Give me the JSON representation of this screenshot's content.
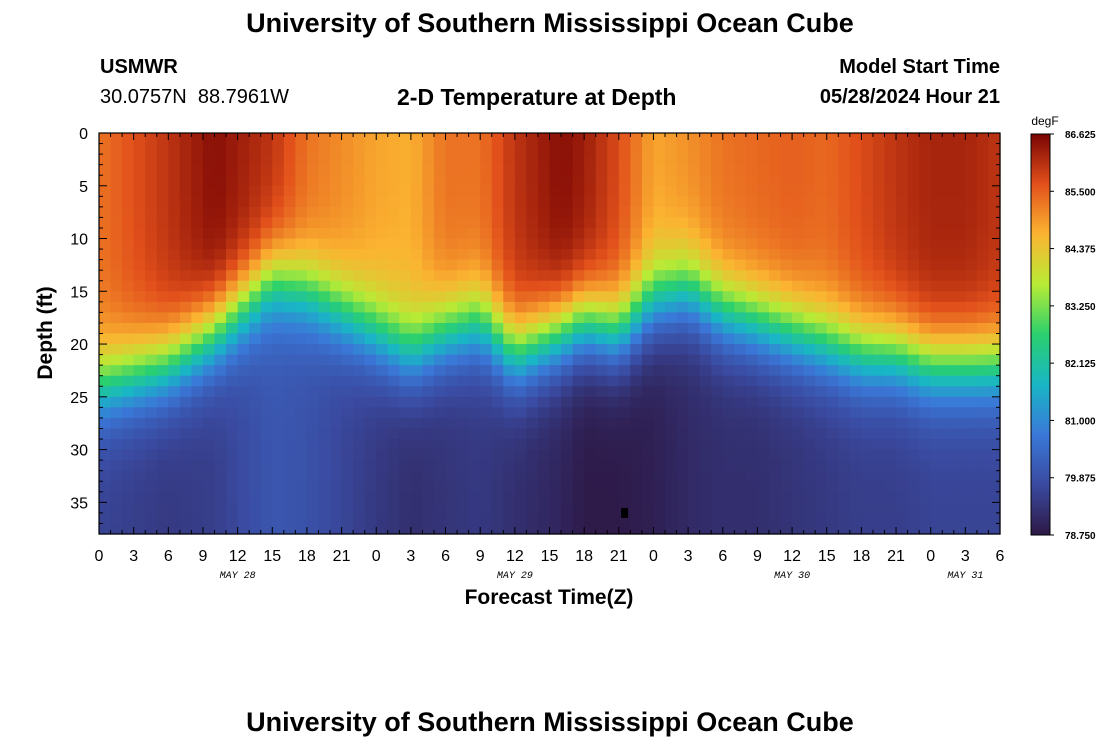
{
  "header": {
    "title": "University of Southern Mississippi Ocean Cube",
    "station": "USMWR",
    "coords": "30.0757N  88.7961W",
    "subtitle": "2-D Temperature at Depth",
    "model_start_label": "Model Start Time",
    "model_start_value": "05/28/2024 Hour 21"
  },
  "footer": {
    "title": "University of Southern Mississippi Ocean Cube"
  },
  "chart_data": {
    "type": "heatmap",
    "title": "2-D Temperature at Depth",
    "xlabel": "Forecast Time(Z)",
    "ylabel": "Depth (ft)",
    "x_unit": "hours since 2024-05-28 00Z",
    "xlim": [
      0,
      78
    ],
    "ylim": [
      0,
      38
    ],
    "y_inverted": true,
    "x_ticks": [
      0,
      3,
      6,
      9,
      12,
      15,
      18,
      21,
      24,
      27,
      30,
      33,
      36,
      39,
      42,
      45,
      48,
      51,
      54,
      57,
      60,
      63,
      66,
      69,
      72,
      75,
      78
    ],
    "x_tick_labels": [
      "0",
      "3",
      "6",
      "9",
      "12",
      "15",
      "18",
      "21",
      "0",
      "3",
      "6",
      "9",
      "12",
      "15",
      "18",
      "21",
      "0",
      "3",
      "6",
      "9",
      "12",
      "15",
      "18",
      "21",
      "0",
      "3",
      "6"
    ],
    "y_ticks": [
      0,
      5,
      10,
      15,
      20,
      25,
      30,
      35
    ],
    "y_tick_labels": [
      "0",
      "5",
      "10",
      "15",
      "20",
      "25",
      "30",
      "35"
    ],
    "day_labels": [
      {
        "x": 12,
        "label": "MAY 28"
      },
      {
        "x": 36,
        "label": "MAY 29"
      },
      {
        "x": 60,
        "label": "MAY 30"
      },
      {
        "x": 75,
        "label": "MAY 31"
      }
    ],
    "colorbar": {
      "unit": "degF",
      "min": 78.75,
      "max": 86.625,
      "tick_labels": [
        "86.625",
        "85.500",
        "84.375",
        "83.250",
        "82.125",
        "81.000",
        "79.875",
        "78.750"
      ]
    },
    "x_hours": [
      0,
      6,
      10,
      15,
      18,
      24,
      27,
      30,
      33,
      36,
      40,
      42,
      45,
      48,
      51,
      54,
      57,
      60,
      63,
      66,
      69,
      72,
      75,
      78
    ],
    "thermocline_depth_ft": [
      24,
      22,
      19,
      14,
      15,
      19,
      21,
      19,
      18,
      21,
      19,
      18,
      19,
      16,
      15,
      17,
      18,
      19,
      20,
      21,
      21,
      22,
      22,
      22
    ],
    "surface_temp_degF": [
      85.3,
      86.0,
      86.5,
      86.0,
      85.3,
      84.8,
      84.7,
      85.3,
      85.3,
      86.0,
      86.5,
      86.3,
      85.7,
      84.8,
      85.0,
      85.3,
      85.4,
      85.5,
      85.4,
      85.7,
      86.0,
      86.2,
      86.2,
      86.0
    ],
    "bottom_temp_degF": [
      79.6,
      79.4,
      79.5,
      80.0,
      79.9,
      79.4,
      79.2,
      79.3,
      79.4,
      79.2,
      79.0,
      78.8,
      78.8,
      78.9,
      79.1,
      79.2,
      79.2,
      79.3,
      79.4,
      79.5,
      79.5,
      79.6,
      79.6,
      79.6
    ],
    "marker": {
      "x": 45.5,
      "y": 36
    }
  }
}
